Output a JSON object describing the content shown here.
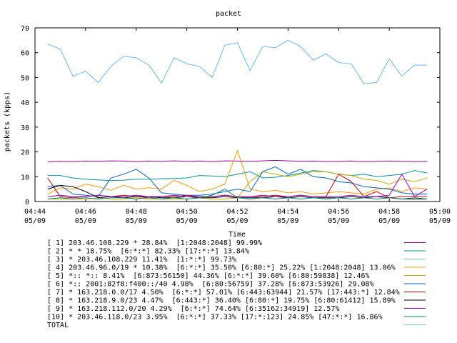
{
  "chart_data": {
    "type": "line",
    "title": "packet",
    "xlabel": "Time",
    "ylabel": "packets (kpps)",
    "ylim": [
      0,
      70
    ],
    "yticks": [
      0,
      10,
      20,
      30,
      40,
      50,
      60,
      70
    ],
    "xticks": [
      {
        "time": "04:44",
        "date": "05/09"
      },
      {
        "time": "04:46",
        "date": "05/09"
      },
      {
        "time": "04:48",
        "date": "05/09"
      },
      {
        "time": "04:50",
        "date": "05/09"
      },
      {
        "time": "04:52",
        "date": "05/09"
      },
      {
        "time": "04:54",
        "date": "05/09"
      },
      {
        "time": "04:56",
        "date": "05/09"
      },
      {
        "time": "04:58",
        "date": "05/09"
      },
      {
        "time": "05:00",
        "date": "05/09"
      }
    ],
    "xlim_minutes": [
      0,
      16
    ],
    "grid": false,
    "legend_placement": "bottom",
    "sample_minutes": [
      0.5,
      1.0,
      1.5,
      2.0,
      2.5,
      3.0,
      3.5,
      4.0,
      4.5,
      5.0,
      5.5,
      6.0,
      6.5,
      7.0,
      7.5,
      8.0,
      8.5,
      9.0,
      9.5,
      10.0,
      10.5,
      11.0,
      11.5,
      12.0,
      12.5,
      13.0,
      13.5,
      14.0,
      14.5,
      15.0,
      15.5
    ],
    "series": [
      {
        "name": "[ 1] 203.46.108.229 * 28.84%  [1:2048:2048] 99.99%",
        "color": "#990099",
        "values": [
          16.0,
          16.2,
          16.1,
          16.3,
          16.2,
          16.4,
          16.3,
          16.1,
          16.3,
          16.2,
          16.4,
          16.2,
          16.3,
          16.1,
          16.4,
          16.3,
          16.2,
          16.4,
          16.6,
          16.4,
          16.2,
          16.3,
          16.1,
          16.2,
          16.3,
          16.1,
          16.2,
          16.3,
          16.2,
          16.1,
          16.2
        ]
      },
      {
        "name": "[ 2] * * 18.75%  [6:*:*] 82.33% [17:*:*] 13.84%",
        "color": "#009999",
        "values": [
          10.5,
          10.5,
          9.5,
          9.0,
          8.7,
          8.4,
          8.6,
          9.0,
          9.0,
          9.2,
          9.3,
          9.5,
          10.5,
          10.3,
          10.0,
          11.0,
          12.0,
          9.5,
          9.8,
          10.5,
          11.5,
          12.5,
          12.0,
          11.0,
          10.5,
          11.0,
          10.0,
          10.5,
          11.0,
          12.5,
          11.5
        ]
      },
      {
        "name": "[ 3] * 203.46.108.229 11.41%  [1:*:*] 99.73%",
        "color": "#66bbff",
        "values": [
          63.5,
          61.5,
          50.5,
          52.5,
          48.0,
          54.5,
          58.5,
          58.0,
          55.0,
          47.8,
          58.0,
          55.5,
          54.5,
          50.0,
          63.0,
          64.0,
          52.8,
          62.5,
          62.0,
          65.0,
          62.5,
          57.0,
          59.5,
          56.0,
          55.5,
          47.5,
          48.0,
          57.5,
          50.5,
          55.0,
          55.0
        ]
      },
      {
        "name": "[ 4] 203.46.96.0/19 * 10.38%  [6:*:*] 35.50% [6:80:*] 25.22% [1:2048:2048] 13.06%",
        "color": "#ff9900",
        "values": [
          3.0,
          5.5,
          5.0,
          7.0,
          6.0,
          4.5,
          6.5,
          5.0,
          5.5,
          5.0,
          8.5,
          6.5,
          4.0,
          5.0,
          7.0,
          20.5,
          5.0,
          4.0,
          4.5,
          3.5,
          4.0,
          3.0,
          3.5,
          4.0,
          3.5,
          3.0,
          5.0,
          5.5,
          4.0,
          5.5,
          5.0
        ]
      },
      {
        "name": "[ 5] *:: *:: 8.41%  [6:873:56150] 44.36% [6:*:*] 39.60% [6:80:59838] 12.46%",
        "color": "#ccaa00",
        "values": [
          1.0,
          1.0,
          1.0,
          1.0,
          1.5,
          1.0,
          1.0,
          1.5,
          1.0,
          1.0,
          1.0,
          1.0,
          1.5,
          1.0,
          1.0,
          1.5,
          8.0,
          12.0,
          11.0,
          10.0,
          11.0,
          12.0,
          12.0,
          11.0,
          10.5,
          9.0,
          8.5,
          7.0,
          9.0,
          8.0,
          9.5
        ]
      },
      {
        "name": "[ 6] *:: 2001:82f8:f400::/40 4.98%  [6:80:56759] 37.28% [6:873:53926] 29.08%",
        "color": "#0066cc",
        "values": [
          6.0,
          6.5,
          3.0,
          2.5,
          2.0,
          9.5,
          11.0,
          13.0,
          9.5,
          3.5,
          3.0,
          2.5,
          2.5,
          3.0,
          4.0,
          5.0,
          4.0,
          12.0,
          14.0,
          11.0,
          13.0,
          10.0,
          9.5,
          8.0,
          7.5,
          6.0,
          5.5,
          5.0,
          3.5,
          3.0,
          3.0
        ]
      },
      {
        "name": "[ 7] * 163.218.0.0/17 4.50%  [6:*:*] 57.01% [6:443:63944] 21.57% [17:443:*] 12.84%",
        "color": "#cc0000",
        "values": [
          9.5,
          2.0,
          1.5,
          2.0,
          2.5,
          2.0,
          2.5,
          2.0,
          1.5,
          2.0,
          2.0,
          2.5,
          2.0,
          2.0,
          2.5,
          2.0,
          2.0,
          2.0,
          2.5,
          2.0,
          2.5,
          2.0,
          2.0,
          11.0,
          8.0,
          2.0,
          4.0,
          1.5,
          2.0,
          2.0,
          2.0
        ]
      },
      {
        "name": "[ 8] * 163.218.9.0/23 4.47%  [6:443:*] 36.40% [6:80:*] 19.75% [6:80:61412] 15.89%",
        "color": "#000000",
        "values": [
          5.0,
          6.5,
          6.0,
          4.0,
          1.5,
          2.0,
          1.5,
          2.0,
          2.0,
          1.5,
          1.5,
          2.0,
          1.5,
          1.5,
          2.0,
          1.5,
          1.5,
          1.5,
          2.0,
          1.5,
          2.0,
          1.5,
          1.5,
          1.5,
          2.0,
          1.5,
          2.0,
          1.5,
          1.0,
          1.0,
          1.0
        ]
      },
      {
        "name": "[ 9] * 163.218.112.0/20 4.29%  [6:*:*] 74.64% [6:35162:34919] 12.57%",
        "color": "#9900cc",
        "values": [
          2.0,
          2.5,
          2.0,
          2.0,
          2.5,
          2.0,
          2.0,
          2.5,
          2.0,
          2.0,
          2.5,
          2.0,
          2.0,
          2.0,
          2.5,
          2.0,
          2.0,
          2.5,
          2.0,
          2.0,
          2.5,
          2.0,
          2.0,
          2.0,
          2.5,
          2.0,
          2.0,
          2.5,
          11.0,
          2.0,
          5.0
        ]
      },
      {
        "name": "[10] * 203.46.118.0/23 3.95%  [6:*:*] 37.33% [17:*:123] 24.85% [47:*:*] 16.86%",
        "color": "#008866",
        "values": [
          1.0,
          1.5,
          1.0,
          1.5,
          1.0,
          1.5,
          1.5,
          1.0,
          1.5,
          1.0,
          1.5,
          1.0,
          1.5,
          2.5,
          5.0,
          1.5,
          1.0,
          1.5,
          1.0,
          1.5,
          1.0,
          1.5,
          1.0,
          1.5,
          1.0,
          1.5,
          1.0,
          1.5,
          1.0,
          1.5,
          1.0
        ]
      },
      {
        "name": "TOTAL",
        "color": "#66cccc",
        "values": []
      }
    ]
  }
}
